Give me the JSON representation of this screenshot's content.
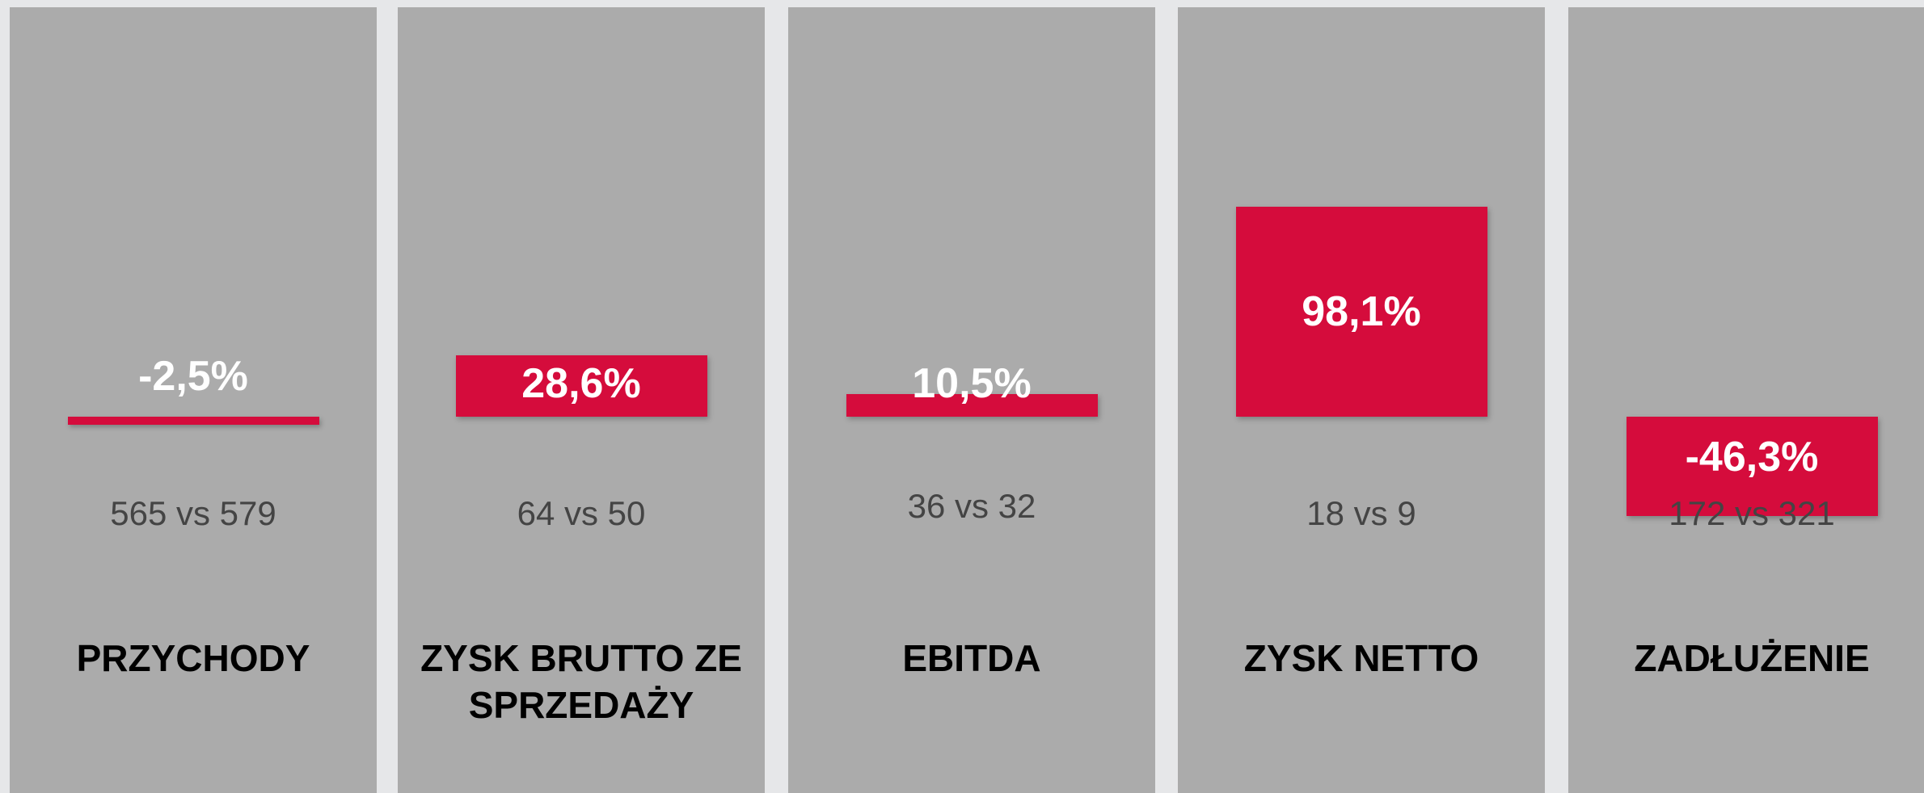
{
  "chart_data": {
    "type": "bar",
    "categories": [
      "PRZYCHODY",
      "ZYSK BRUTTO ZE SPRZEDAŻY",
      "EBITDA",
      "ZYSK NETTO",
      "ZADŁUŻENIE"
    ],
    "values": [
      -2.5,
      28.6,
      10.5,
      98.1,
      -46.3
    ],
    "value_labels": [
      "-2,5%",
      "28,6%",
      "10,5%",
      "98,1%",
      "-46,3%"
    ],
    "comparisons": [
      "565 vs 579",
      "64 vs 50",
      "36 vs 32",
      "18 vs 9",
      "172 vs 321"
    ],
    "color": "#d50c3c"
  }
}
